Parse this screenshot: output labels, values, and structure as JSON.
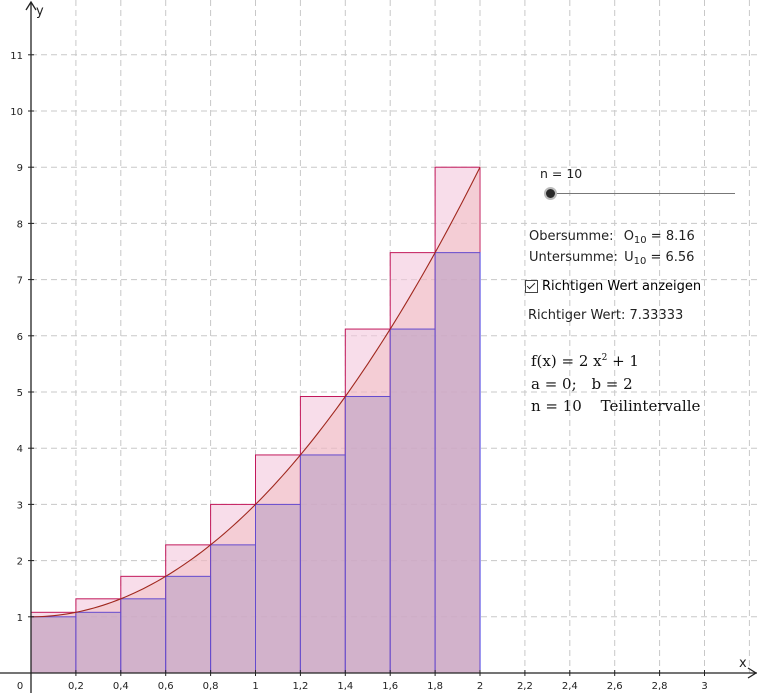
{
  "slider": {
    "label": "n = 10",
    "value": 10
  },
  "sums": {
    "upper_label": "Obersumme:",
    "upper_symbol": "O",
    "upper_sub": "10",
    "upper_value": "= 8.16",
    "lower_label": "Untersumme:",
    "lower_symbol": "U",
    "lower_sub": "10",
    "lower_value": "= 6.56"
  },
  "checkbox": {
    "label": "Richtigen Wert anzeigen",
    "checked": true
  },
  "true_value": {
    "text": "Richtiger Wert: 7.33333"
  },
  "formula": {
    "f_left": "f(x) = 2 x",
    "f_exp": "2",
    "f_right": " + 1",
    "a": "a = 0;",
    "b": "b = 2",
    "n": "n = 10",
    "n_text": "Teilintervalle"
  },
  "chart_data": {
    "type": "area",
    "function": "f(x) = 2 x^2 + 1",
    "interval": [
      0,
      2
    ],
    "subintervals": 10,
    "xlabel": "x",
    "ylabel": "y",
    "xlim": [
      0,
      3.2
    ],
    "ylim": [
      0,
      11.4
    ],
    "x_ticks": [
      "0",
      "0,2",
      "0,4",
      "0,6",
      "0,8",
      "1",
      "1,2",
      "1,4",
      "1,6",
      "1,8",
      "2",
      "2,2",
      "2,4",
      "2,6",
      "2,8",
      "3"
    ],
    "y_ticks": [
      "1",
      "2",
      "3",
      "4",
      "5",
      "6",
      "7",
      "8",
      "9",
      "10",
      "11"
    ],
    "grid": true,
    "upper_rectangles": [
      1.08,
      1.32,
      1.72,
      2.28,
      3.0,
      3.88,
      4.92,
      6.12,
      7.48,
      9.0
    ],
    "lower_rectangles": [
      1.0,
      1.08,
      1.32,
      1.72,
      2.28,
      3.0,
      3.88,
      4.92,
      6.12,
      7.48
    ],
    "colors": {
      "upper": "#c2185b",
      "lower": "#3a2fe0",
      "curve": "#a0281e",
      "upper_fill": "#f3c6dc",
      "lower_fill": "#b8a8d6"
    }
  }
}
